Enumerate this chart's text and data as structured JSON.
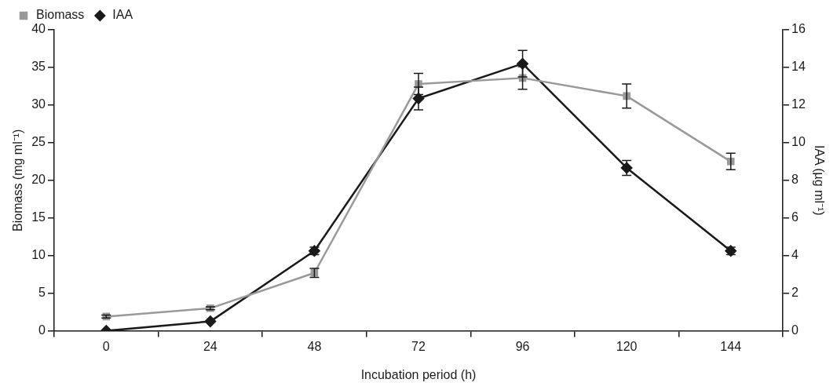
{
  "chart_data": {
    "type": "line",
    "xlabel": "Incubation period (h)",
    "ylabel": "Biomass (mg ml⁻¹)",
    "y2label": "IAA (µg ml⁻¹)",
    "categories": [
      "0",
      "24",
      "48",
      "72",
      "96",
      "120",
      "144"
    ],
    "series": [
      {
        "name": "Biomass",
        "color": "#999999",
        "marker": "square",
        "values": [
          1.9,
          3.0,
          7.7,
          32.8,
          33.6,
          31.2,
          22.5
        ],
        "errors": [
          0.2,
          0.2,
          0.6,
          1.4,
          1.5,
          1.6,
          1.1
        ]
      },
      {
        "name": "IAA",
        "color": "#1a1a1a",
        "marker": "diamond",
        "axis": "y2",
        "values": [
          0,
          0.5,
          4.25,
          12.35,
          14.2,
          8.66,
          4.25
        ],
        "errors": [
          null,
          null,
          0.2,
          0.6,
          0.7,
          0.4,
          0.2
        ]
      }
    ],
    "ylim": [
      0,
      40
    ],
    "yticks": [
      0,
      5,
      10,
      15,
      20,
      25,
      30,
      35,
      40
    ],
    "y2lim": [
      0,
      16
    ],
    "y2ticks": [
      0,
      2,
      4,
      6,
      8,
      10,
      12,
      14,
      16
    ],
    "legend": "top left",
    "grid": false,
    "line_style": "solid"
  }
}
